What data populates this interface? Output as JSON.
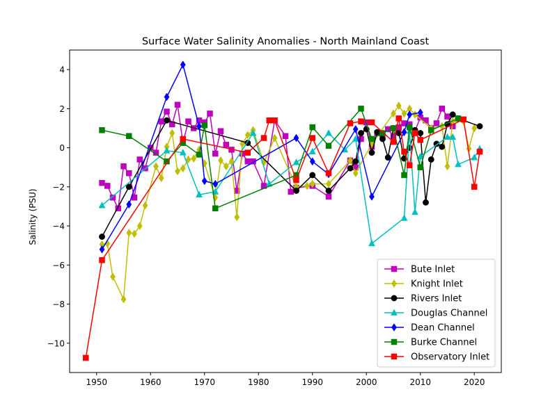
{
  "chart_data": {
    "type": "line",
    "title": "Surface Water Salinity Anomalies - North Mainland Coast",
    "xlabel": "",
    "ylabel": "Salinity (PSU)",
    "xlim": [
      1945,
      2025
    ],
    "ylim": [
      -11.5,
      5.0
    ],
    "xticks": [
      1950,
      1960,
      1970,
      1980,
      1990,
      2000,
      2010,
      2020
    ],
    "yticks": [
      -10,
      -8,
      -6,
      -4,
      -2,
      0,
      2,
      4
    ],
    "ytick_labels": [
      "−10",
      "−8",
      "−6",
      "−4",
      "−2",
      "0",
      "2",
      "4"
    ],
    "grid": false,
    "legend_position": "lower-right",
    "series": [
      {
        "name": "Bute Inlet",
        "color": "#bf00bf",
        "marker": "square",
        "x": [
          1951,
          1952,
          1953,
          1954,
          1955,
          1956,
          1957,
          1958,
          1959,
          1960,
          1961,
          1962,
          1963,
          1964,
          1965,
          1966,
          1967,
          1968,
          1969,
          1970,
          1971,
          1972,
          1973,
          1974,
          1975,
          1976,
          1977,
          1978,
          1979,
          1981,
          1983,
          1985,
          1986,
          1987,
          1990,
          1993,
          1997,
          1998,
          1999,
          2000,
          2001,
          2002,
          2003,
          2004,
          2005,
          2006,
          2007,
          2008,
          2009,
          2010,
          2011,
          2012,
          2013,
          2014,
          2015,
          2016
        ],
        "y": [
          -1.8,
          -1.95,
          -2.55,
          -3.1,
          -0.95,
          -1.3,
          -2.55,
          -0.6,
          -1.05,
          0.0,
          -0.25,
          1.35,
          1.85,
          1.2,
          2.2,
          0.25,
          1.35,
          1.0,
          1.4,
          1.3,
          1.75,
          -0.3,
          0.85,
          0.15,
          -0.1,
          -2.2,
          -0.3,
          -0.7,
          -0.7,
          -1.95,
          1.4,
          0.6,
          -2.25,
          -2.05,
          -1.95,
          -2.5,
          -0.65,
          -1.0,
          0.45,
          1.3,
          0.05,
          0.75,
          0.65,
          0.95,
          0.6,
          1.05,
          1.25,
          1.2,
          0.85,
          1.55,
          1.4,
          1.0,
          1.25,
          2.0,
          1.6,
          1.1
        ]
      },
      {
        "name": "Knight Inlet",
        "color": "#bfbf00",
        "marker": "diamond",
        "x": [
          1951,
          1952,
          1953,
          1955,
          1956,
          1957,
          1958,
          1959,
          1961,
          1962,
          1963,
          1964,
          1965,
          1966,
          1967,
          1968,
          1969,
          1970,
          1972,
          1973,
          1974,
          1975,
          1976,
          1977,
          1978,
          1979,
          1981,
          1983,
          1987,
          1989,
          1990,
          1993,
          1997,
          1998,
          2001,
          2005,
          2006,
          2007,
          2008,
          2009,
          2012,
          2014,
          2015,
          2016,
          2018,
          2019,
          2020
        ],
        "y": [
          -4.95,
          -4.9,
          -6.6,
          -7.75,
          -4.35,
          -4.4,
          -4.0,
          -2.95,
          -0.95,
          -1.55,
          0.05,
          0.75,
          -1.2,
          -1.05,
          -0.6,
          -0.55,
          -0.1,
          -0.8,
          -2.55,
          -0.65,
          -0.95,
          -0.7,
          -3.55,
          0.2,
          0.65,
          0.9,
          -0.75,
          0.5,
          -2.0,
          -1.95,
          -1.85,
          -1.85,
          -0.65,
          -1.3,
          0.2,
          1.75,
          2.15,
          1.75,
          2.0,
          1.7,
          1.0,
          1.1,
          -0.95,
          1.35,
          1.35,
          -0.05,
          1.0
        ]
      },
      {
        "name": "Rivers Inlet",
        "color": "#000000",
        "marker": "circle",
        "x": [
          1951,
          1956,
          1963,
          1978,
          1987,
          1990,
          1993,
          1997,
          1998,
          1999,
          2000,
          2001,
          2002,
          2003,
          2004,
          2005,
          2006,
          2007,
          2008,
          2009,
          2010,
          2011,
          2012,
          2013,
          2014,
          2015,
          2016,
          2017,
          2021
        ],
        "y": [
          -4.55,
          -2.0,
          1.4,
          0.25,
          -2.2,
          -1.4,
          -2.2,
          -1.05,
          -0.7,
          0.75,
          0.95,
          -0.25,
          0.8,
          0.45,
          -0.5,
          1.0,
          0.75,
          -0.55,
          0.0,
          0.9,
          0.75,
          -2.8,
          -0.6,
          0.2,
          0.05,
          1.2,
          1.7,
          1.5,
          1.1
        ]
      },
      {
        "name": "Douglas Channel",
        "color": "#00bfbf",
        "marker": "triangle",
        "x": [
          1951,
          1963,
          1966,
          1969,
          1972,
          1979,
          1982,
          1987,
          1990,
          1993,
          1996,
          1998,
          2001,
          2007,
          2008,
          2009,
          2010,
          2015,
          2016,
          2017,
          2020,
          2021
        ],
        "y": [
          -2.95,
          -0.15,
          -0.25,
          -2.4,
          -2.25,
          0.75,
          -1.85,
          -0.75,
          -0.2,
          0.75,
          -0.1,
          0.45,
          -4.9,
          -3.6,
          0.85,
          -3.3,
          -0.45,
          0.55,
          0.55,
          -0.85,
          -0.5,
          -0.05
        ]
      },
      {
        "name": "Dean Channel",
        "color": "#0000ff",
        "marker": "diamond",
        "x": [
          1951,
          1956,
          1963,
          1966,
          1969,
          1970,
          1972,
          1987,
          1990,
          1993,
          1998,
          2001,
          2007,
          2008,
          2010
        ],
        "y": [
          -5.2,
          -2.9,
          2.6,
          4.25,
          1.1,
          -1.7,
          -1.85,
          0.5,
          -0.7,
          -1.35,
          0.95,
          -2.5,
          0.8,
          1.7,
          1.8
        ]
      },
      {
        "name": "Burke Channel",
        "color": "#008000",
        "marker": "square",
        "x": [
          1951,
          1956,
          1963,
          1966,
          1969,
          1970,
          1972,
          1987,
          1990,
          1993,
          1999,
          2001,
          2003,
          2005,
          2007,
          2008,
          2010,
          2012,
          2017
        ],
        "y": [
          0.9,
          0.6,
          -0.7,
          0.25,
          -0.35,
          1.15,
          -3.1,
          -1.4,
          1.05,
          0.1,
          2.0,
          0.45,
          0.75,
          1.0,
          -1.4,
          1.05,
          -1.0,
          0.9,
          1.5
        ]
      },
      {
        "name": "Observatory Inlet",
        "color": "#ff0000",
        "marker": "square",
        "x": [
          1948,
          1951,
          1966,
          1978,
          1981,
          1982,
          1983,
          1987,
          1990,
          1993,
          1997,
          1999,
          2001,
          2005,
          2006,
          2007,
          2008,
          2009,
          2010,
          2018,
          2020,
          2021
        ],
        "y": [
          -10.75,
          -5.75,
          0.45,
          -0.25,
          0.5,
          1.4,
          1.4,
          -1.65,
          0.5,
          -1.3,
          1.25,
          1.35,
          1.3,
          0.3,
          1.5,
          -0.2,
          -0.9,
          0.75,
          0.4,
          1.45,
          -2.0,
          -0.2
        ]
      }
    ]
  }
}
